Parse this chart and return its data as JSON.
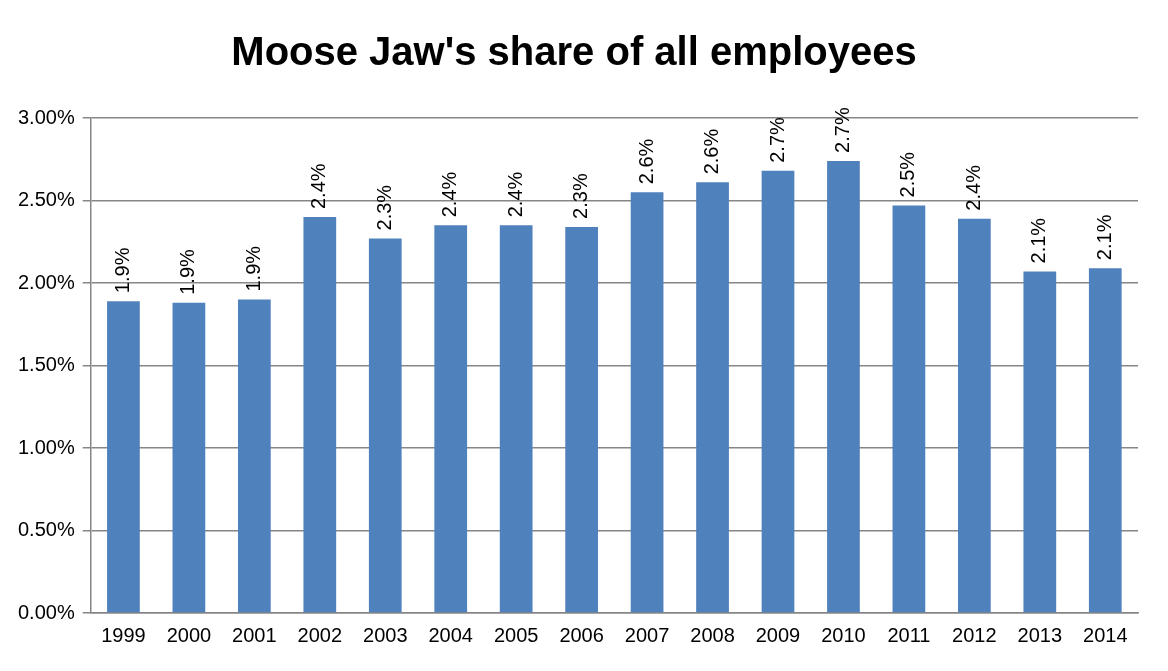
{
  "chart_data": {
    "type": "bar",
    "title": "Moose Jaw's share of all employees",
    "categories": [
      "1999",
      "2000",
      "2001",
      "2002",
      "2003",
      "2004",
      "2005",
      "2006",
      "2007",
      "2008",
      "2009",
      "2010",
      "2011",
      "2012",
      "2013",
      "2014"
    ],
    "values": [
      1.89,
      1.88,
      1.9,
      2.4,
      2.27,
      2.35,
      2.35,
      2.34,
      2.55,
      2.61,
      2.68,
      2.74,
      2.47,
      2.39,
      2.07,
      2.09
    ],
    "value_labels": [
      "1.9%",
      "1.9%",
      "1.9%",
      "2.4%",
      "2.3%",
      "2.4%",
      "2.4%",
      "2.3%",
      "2.6%",
      "2.6%",
      "2.7%",
      "2.7%",
      "2.5%",
      "2.4%",
      "2.1%",
      "2.1%"
    ],
    "color": "#4f81bd",
    "ylim": [
      0,
      3
    ],
    "yticks": [
      {
        "value": 0,
        "label": "0.00%"
      },
      {
        "value": 0.5,
        "label": "0.50%"
      },
      {
        "value": 1,
        "label": "1.00%"
      },
      {
        "value": 1.5,
        "label": "1.50%"
      },
      {
        "value": 2,
        "label": "2.00%"
      },
      {
        "value": 2.5,
        "label": "2.50%"
      },
      {
        "value": 3,
        "label": "3.00%"
      }
    ],
    "grid": "y",
    "legend": false
  }
}
